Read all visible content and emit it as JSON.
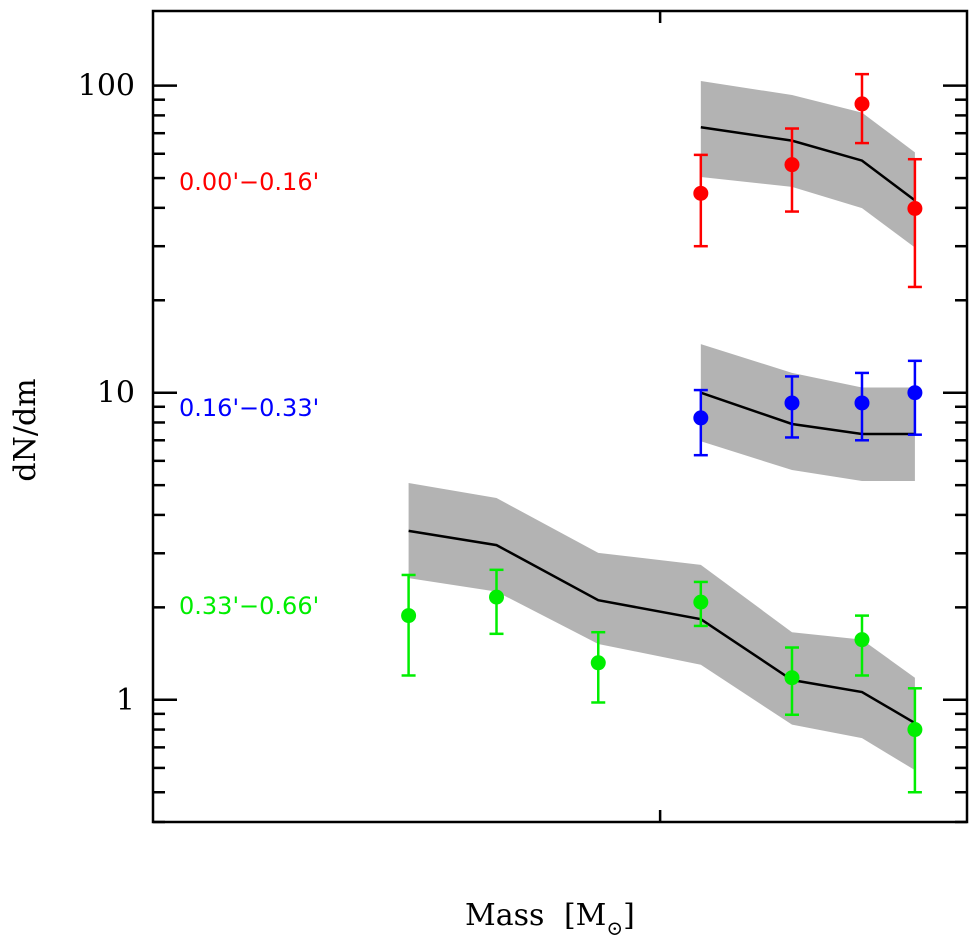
{
  "chart_data": {
    "type": "scatter",
    "title": "",
    "xlabel": "Mass [M⊙]",
    "xlabel_main": "Mass",
    "xlabel_unit": "M",
    "xlabel_subscript": "⊙",
    "ylabel": "dN/dm",
    "yscale": "log",
    "ylim": [
      0.4,
      175
    ],
    "xscale": "log",
    "x_tick_labels": [],
    "y_ticks": [
      {
        "value": 1,
        "label": "1"
      },
      {
        "value": 10,
        "label": "10"
      },
      {
        "value": 100,
        "label": "100"
      }
    ],
    "x_note": "x tick values not labeled; x given as fraction of axis width (0=left edge, 1=right edge)",
    "x_major_tick_fraction": 0.623,
    "grid": false,
    "legend": "inline-left",
    "series": [
      {
        "name": "0.00'−0.16'",
        "label": "0.00'−0.16'",
        "color": "#ff0000",
        "points": [
          {
            "x": 0.673,
            "y": 44.6,
            "yerr_low": 30.0,
            "yerr_high": 59.5
          },
          {
            "x": 0.785,
            "y": 55.3,
            "yerr_low": 38.9,
            "yerr_high": 72.5
          },
          {
            "x": 0.871,
            "y": 87.2,
            "yerr_low": 65.0,
            "yerr_high": 109.0
          },
          {
            "x": 0.936,
            "y": 39.8,
            "yerr_low": 22.1,
            "yerr_high": 57.6
          }
        ],
        "model": {
          "x": [
            0.673,
            0.785,
            0.871,
            0.936
          ],
          "y": [
            73.2,
            66.2,
            57.0,
            42.3
          ],
          "band_upper": [
            103.5,
            93.2,
            81.7,
            60.6
          ],
          "band_lower": [
            50.4,
            46.8,
            39.9,
            29.7
          ]
        }
      },
      {
        "name": "0.16'−0.33'",
        "label": "0.16'−0.33'",
        "color": "#0000ff",
        "points": [
          {
            "x": 0.673,
            "y": 8.28,
            "yerr_low": 6.26,
            "yerr_high": 10.2
          },
          {
            "x": 0.785,
            "y": 9.26,
            "yerr_low": 7.15,
            "yerr_high": 11.3
          },
          {
            "x": 0.871,
            "y": 9.26,
            "yerr_low": 7.0,
            "yerr_high": 11.6
          },
          {
            "x": 0.936,
            "y": 10.0,
            "yerr_low": 7.3,
            "yerr_high": 12.7
          }
        ],
        "model": {
          "x": [
            0.673,
            0.785,
            0.871,
            0.936
          ],
          "y": [
            10.0,
            7.91,
            7.34,
            7.34
          ],
          "band_upper": [
            14.4,
            11.6,
            10.4,
            10.4
          ],
          "band_lower": [
            6.95,
            5.6,
            5.16,
            5.16
          ]
        }
      },
      {
        "name": "0.33'−0.66'",
        "label": "0.33'−0.66'",
        "color": "#00ee00",
        "points": [
          {
            "x": 0.314,
            "y": 1.88,
            "yerr_low": 1.2,
            "yerr_high": 2.55
          },
          {
            "x": 0.422,
            "y": 2.16,
            "yerr_low": 1.64,
            "yerr_high": 2.65
          },
          {
            "x": 0.547,
            "y": 1.32,
            "yerr_low": 0.98,
            "yerr_high": 1.66
          },
          {
            "x": 0.673,
            "y": 2.08,
            "yerr_low": 1.74,
            "yerr_high": 2.42
          },
          {
            "x": 0.785,
            "y": 1.18,
            "yerr_low": 0.894,
            "yerr_high": 1.48
          },
          {
            "x": 0.871,
            "y": 1.57,
            "yerr_low": 1.2,
            "yerr_high": 1.88
          },
          {
            "x": 0.936,
            "y": 0.8,
            "yerr_low": 0.5,
            "yerr_high": 1.09
          }
        ],
        "model": {
          "x": [
            0.314,
            0.422,
            0.547,
            0.673,
            0.785,
            0.871,
            0.936
          ],
          "y": [
            3.55,
            3.19,
            2.11,
            1.83,
            1.16,
            1.06,
            0.84
          ],
          "band_upper": [
            5.08,
            4.54,
            3.01,
            2.75,
            1.66,
            1.57,
            1.18
          ],
          "band_lower": [
            2.49,
            2.25,
            1.52,
            1.3,
            0.83,
            0.75,
            0.59
          ]
        }
      }
    ],
    "band_color": "#b3b3b3",
    "model_line_color": "#000000"
  }
}
